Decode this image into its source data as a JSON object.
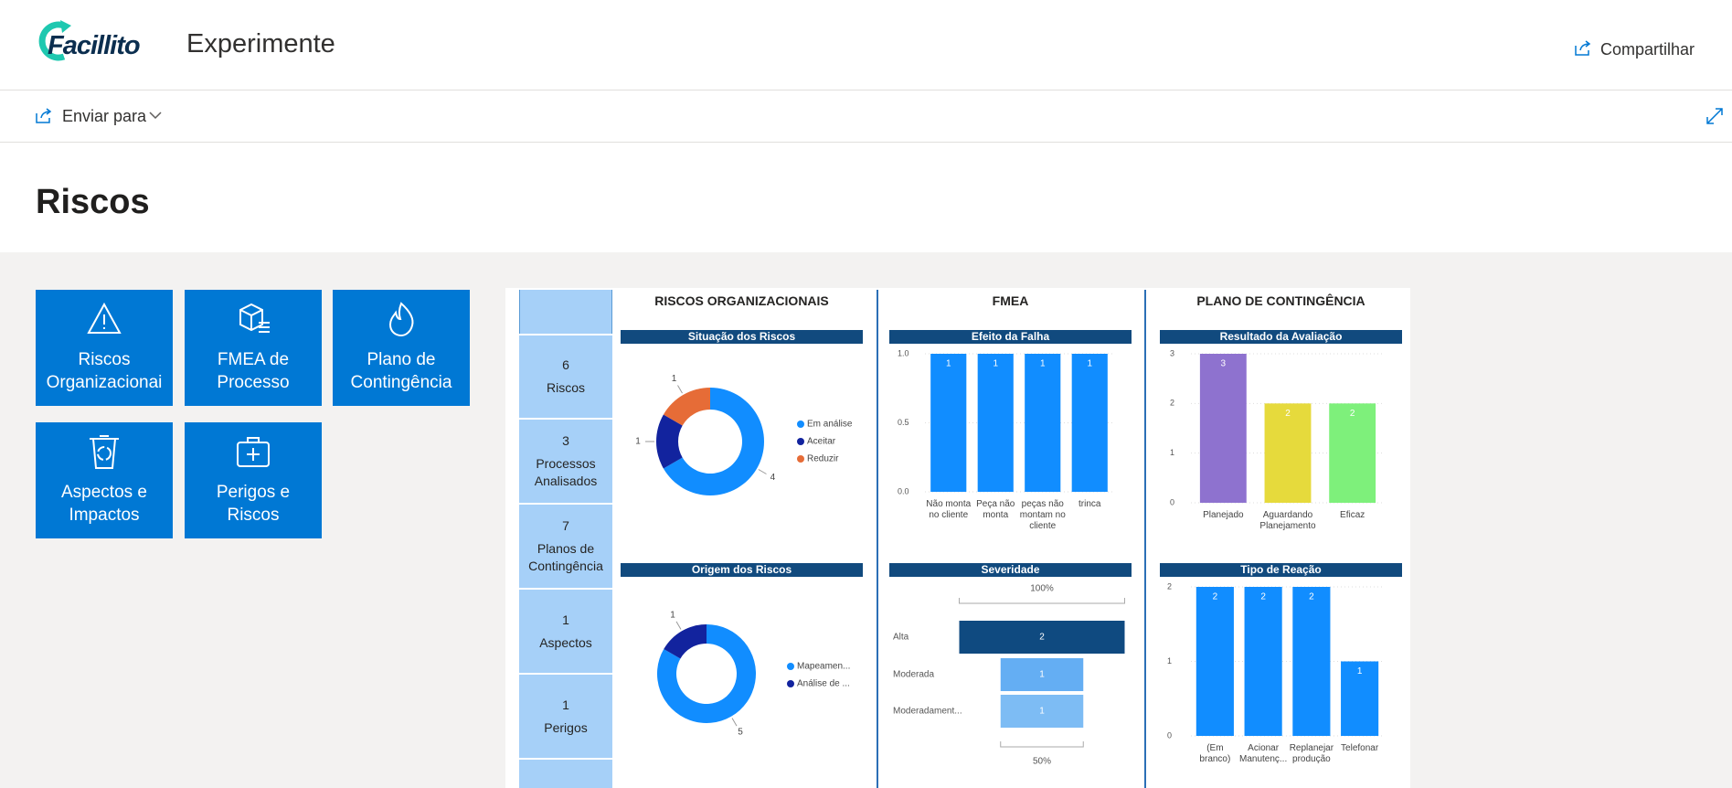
{
  "header": {
    "logo": "Facillito",
    "site_title": "Experimente",
    "share": "Compartilhar"
  },
  "toolbar": {
    "send_to": "Enviar para"
  },
  "page_title": "Riscos",
  "tiles": [
    "Riscos Organizacionai",
    "FMEA de Processo",
    "Plano de Contingência",
    "Aspectos e Impactos",
    "Perigos e Riscos"
  ],
  "kpis": [
    {
      "value": 6,
      "label": "Riscos"
    },
    {
      "value": 3,
      "label": "Processos Analisados"
    },
    {
      "value": 7,
      "label": "Planos de Contingência"
    },
    {
      "value": 1,
      "label": "Aspectos"
    },
    {
      "value": 1,
      "label": "Perigos"
    }
  ],
  "sections": [
    "RISCOS ORGANIZACIONAIS",
    "FMEA",
    "PLANO DE CONTINGÊNCIA"
  ],
  "chart_data": [
    {
      "type": "pie",
      "title": "Situação dos Riscos",
      "categories": [
        "Em análise",
        "Aceitar",
        "Reduzir"
      ],
      "values": [
        4,
        1,
        1
      ],
      "colors": [
        "#118dff",
        "#12239e",
        "#e66c37"
      ]
    },
    {
      "type": "pie",
      "title": "Origem dos Riscos",
      "categories": [
        "Mapeamen...",
        "Análise de ..."
      ],
      "values": [
        5,
        1
      ],
      "colors": [
        "#118dff",
        "#12239e"
      ]
    },
    {
      "type": "bar",
      "title": "Efeito da Falha",
      "categories": [
        "Não monta no cliente",
        "Peça não monta",
        "peças não montam no cliente",
        "trinca"
      ],
      "values": [
        1,
        1,
        1,
        1
      ],
      "color": "#118dff",
      "ylim": [
        0,
        1
      ],
      "yticks": [
        {
          "value": 0,
          "label": "0.0"
        },
        0.5,
        {
          "value": 1,
          "label": "1.0"
        }
      ],
      "grid": true
    },
    {
      "type": "bar",
      "title": "Resultado da Avaliação",
      "categories": [
        "Planejado",
        "Aguardando Planejamento",
        "Eficaz"
      ],
      "values": [
        3,
        2,
        2
      ],
      "colors": [
        "#8e72cf",
        "#e6da3c",
        "#7ef07b"
      ],
      "ylim": [
        0,
        3
      ],
      "yticks": [
        0,
        1,
        2,
        3
      ],
      "grid": true
    },
    {
      "type": "bar",
      "orientation": "horizontal",
      "title": "Severidade",
      "categories": [
        "Alta",
        "Moderada",
        "Moderadament..."
      ],
      "values": [
        2,
        1,
        1
      ],
      "colors": [
        "#0f4a80",
        "#64aef3",
        "#7dbcf4"
      ],
      "xlim": [
        0,
        2
      ],
      "annotations": [
        "100%",
        "50%"
      ]
    },
    {
      "type": "bar",
      "title": "Tipo de Reação",
      "categories": [
        "(Em branco)",
        "Acionar Manutenç...",
        "Replanejar produção",
        "Telefonar"
      ],
      "values": [
        2,
        2,
        2,
        1
      ],
      "color": "#118dff",
      "ylim": [
        0,
        2
      ],
      "yticks": [
        0,
        1,
        2
      ],
      "grid": true
    }
  ]
}
